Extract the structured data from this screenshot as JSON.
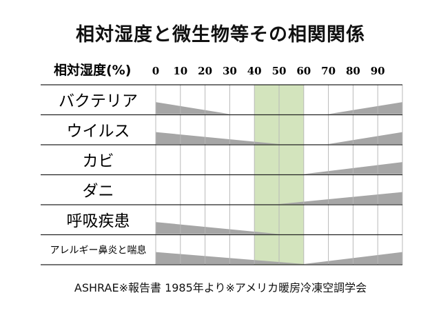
{
  "title": "相対湿度と微生物等その相関関係",
  "footer": "ASHRAE※報告書 1985年より※アメリカ暖房冷凍空調学会",
  "colors": {
    "optimal_band": "#d3e4bd",
    "area_fill": "#a6a6a6",
    "grid": "#b8b8b8",
    "row_line": "#222222"
  },
  "chart_data": {
    "type": "area",
    "title": "相対湿度と微生物等その相関関係",
    "xlabel": "相対湿度(%)",
    "x_ticks": [
      0,
      10,
      20,
      30,
      40,
      50,
      60,
      70,
      80,
      90
    ],
    "xlim": [
      0,
      100
    ],
    "optimal_range": [
      40,
      60
    ],
    "series": [
      {
        "name": "バクテリア",
        "points": [
          [
            0,
            0.8
          ],
          [
            30,
            0
          ],
          [
            70,
            0
          ],
          [
            100,
            0.8
          ]
        ]
      },
      {
        "name": "ウイルス",
        "points": [
          [
            0,
            0.8
          ],
          [
            50,
            0
          ],
          [
            70,
            0
          ],
          [
            100,
            0.8
          ]
        ]
      },
      {
        "name": "カビ",
        "points": [
          [
            0,
            0
          ],
          [
            60,
            0
          ],
          [
            100,
            0.8
          ]
        ]
      },
      {
        "name": "ダニ",
        "points": [
          [
            0,
            0
          ],
          [
            50,
            0
          ],
          [
            100,
            0.8
          ]
        ]
      },
      {
        "name": "呼吸疾患",
        "points": [
          [
            0,
            0.8
          ],
          [
            50,
            0
          ],
          [
            100,
            0
          ]
        ]
      },
      {
        "name": "アレルギー鼻炎と喘息",
        "points": [
          [
            0,
            0.8
          ],
          [
            60,
            0
          ],
          [
            100,
            0.8
          ]
        ]
      }
    ]
  }
}
